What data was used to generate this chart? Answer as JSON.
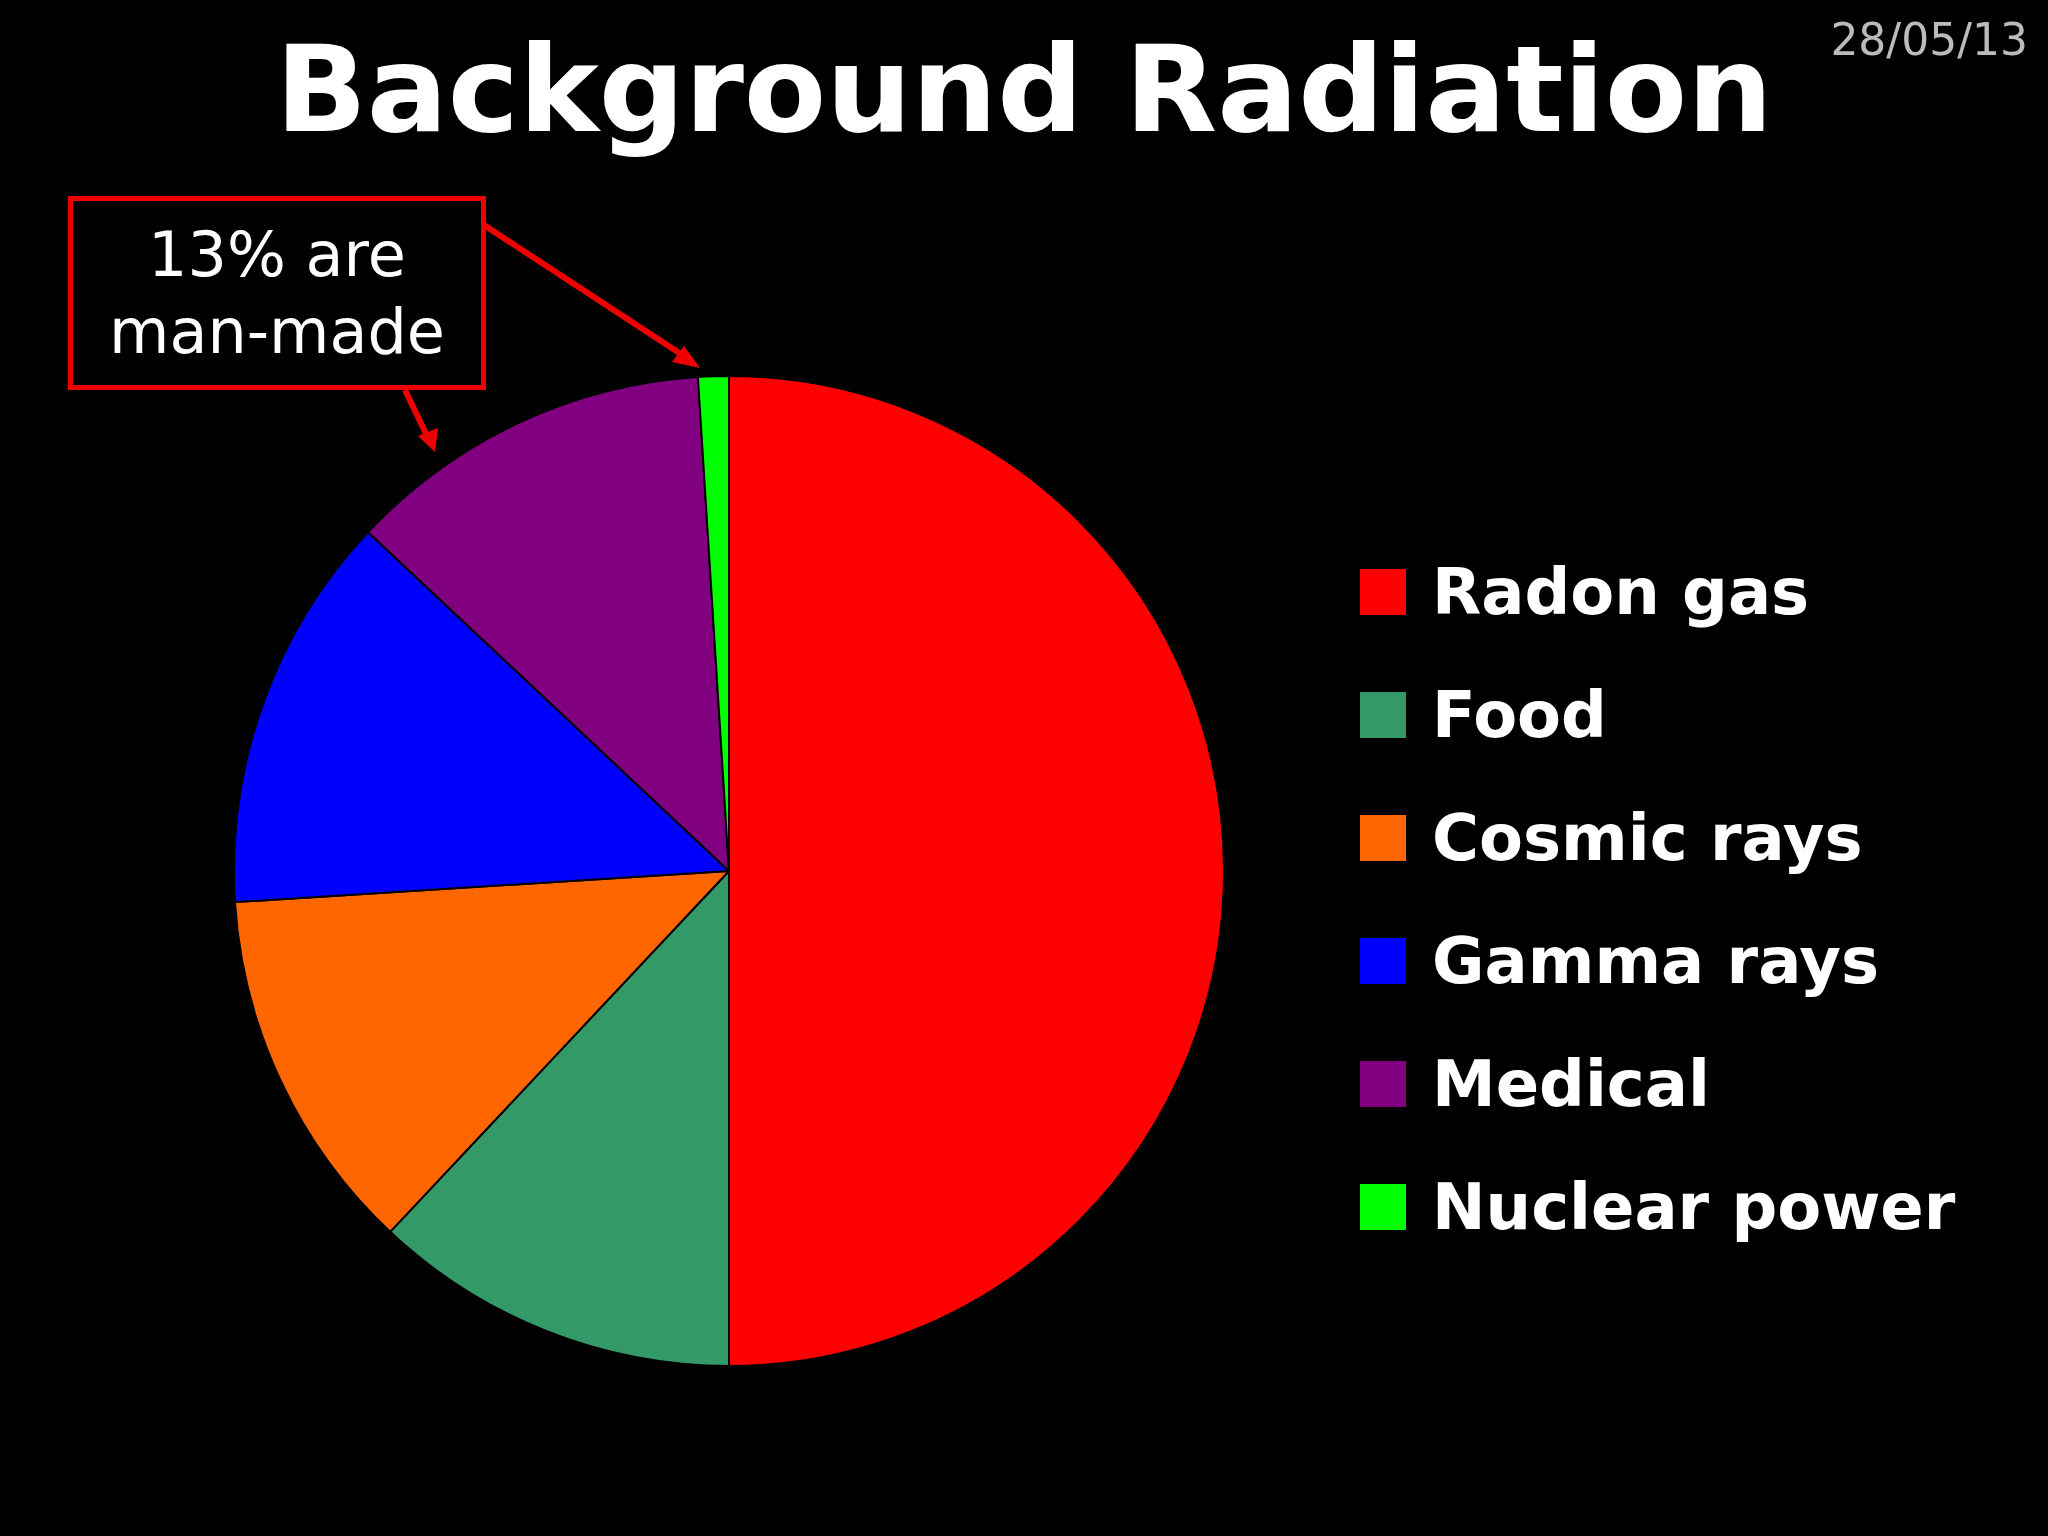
{
  "chart_data": {
    "type": "pie",
    "title": "Background Radiation",
    "categories": [
      "Radon gas",
      "Food",
      "Cosmic rays",
      "Gamma rays",
      "Medical",
      "Nuclear power"
    ],
    "values": [
      50,
      12,
      12,
      13,
      12,
      1
    ],
    "colors": [
      "#ff0000",
      "#339966",
      "#ff6600",
      "#0000ff",
      "#800080",
      "#00ff00"
    ],
    "legend": "right",
    "annotations": [
      "13% are man-made",
      "28/05/13"
    ]
  }
}
